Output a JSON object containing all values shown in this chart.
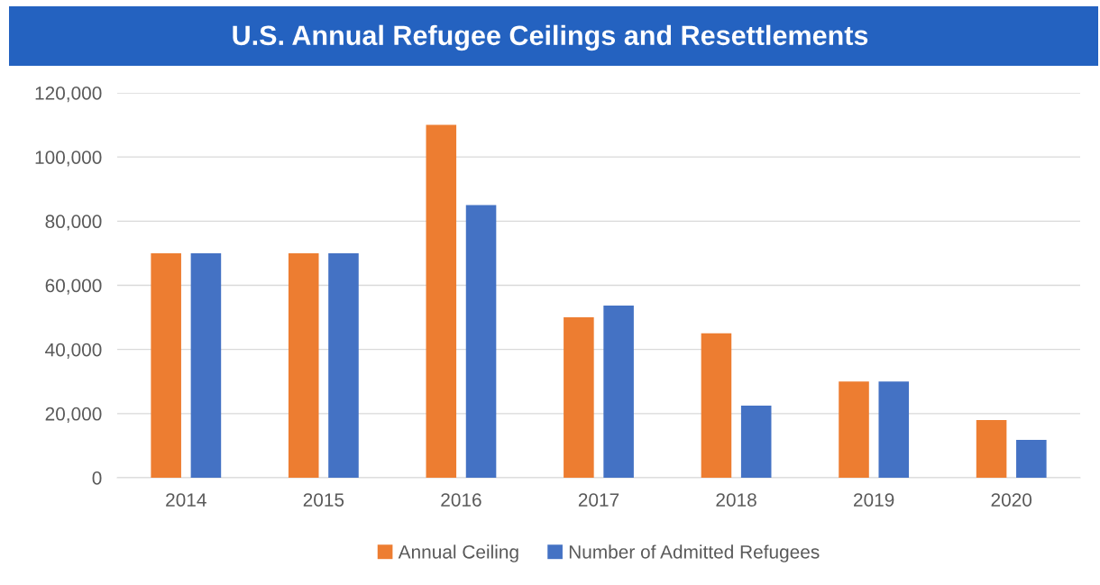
{
  "chart_data": {
    "type": "bar",
    "title": "U.S. Annual Refugee Ceilings and Resettlements",
    "categories": [
      "2014",
      "2015",
      "2016",
      "2017",
      "2018",
      "2019",
      "2020"
    ],
    "series": [
      {
        "name": "Annual Ceiling",
        "color": "#ed7d31",
        "values": [
          70000,
          70000,
          110000,
          50000,
          45000,
          30000,
          18000
        ]
      },
      {
        "name": "Number of Admitted Refugees",
        "color": "#4472c4",
        "values": [
          70000,
          70000,
          85000,
          53700,
          22500,
          30000,
          11800
        ]
      }
    ],
    "ylim": [
      0,
      120000
    ],
    "yticks": [
      {
        "value": 0,
        "label": "0"
      },
      {
        "value": 20000,
        "label": "20,000"
      },
      {
        "value": 40000,
        "label": "40,000"
      },
      {
        "value": 60000,
        "label": "60,000"
      },
      {
        "value": 80000,
        "label": "80,000"
      },
      {
        "value": 100000,
        "label": "100,000"
      },
      {
        "value": 120000,
        "label": "120,000"
      }
    ],
    "grid": "y",
    "legend": "bottom"
  }
}
